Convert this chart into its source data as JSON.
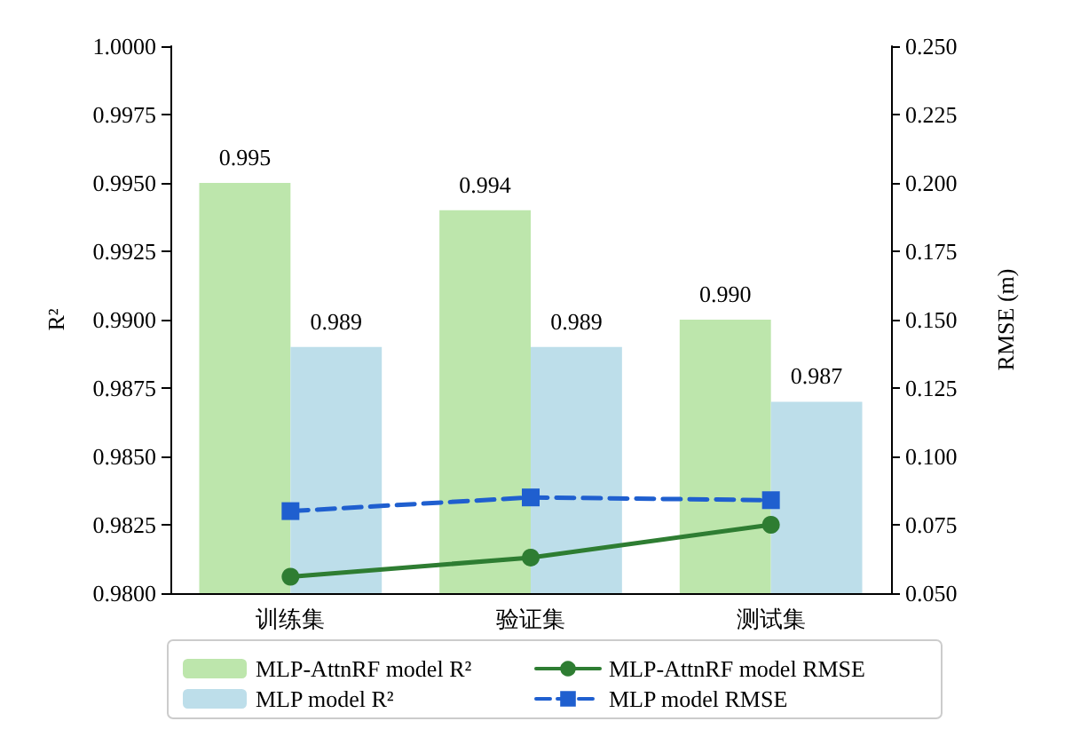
{
  "chart_data": {
    "type": "bar",
    "categories": [
      "训练集",
      "验证集",
      "测试集"
    ],
    "ylabel": "R²",
    "y2label": "RMSE (m)",
    "ylim": [
      0.98,
      1.0
    ],
    "yticks": [
      {
        "value": 0.98,
        "label": "0.9800"
      },
      {
        "value": 0.9825,
        "label": "0.9825"
      },
      {
        "value": 0.985,
        "label": "0.9850"
      },
      {
        "value": 0.9875,
        "label": "0.9875"
      },
      {
        "value": 0.99,
        "label": "0.9900"
      },
      {
        "value": 0.9925,
        "label": "0.9925"
      },
      {
        "value": 0.995,
        "label": "0.9950"
      },
      {
        "value": 0.9975,
        "label": "0.9975"
      },
      {
        "value": 1.0,
        "label": "1.0000"
      }
    ],
    "y2lim": [
      0.05,
      0.25
    ],
    "y2ticks": [
      {
        "value": 0.05,
        "label": "0.050"
      },
      {
        "value": 0.075,
        "label": "0.075"
      },
      {
        "value": 0.1,
        "label": "0.100"
      },
      {
        "value": 0.125,
        "label": "0.125"
      },
      {
        "value": 0.15,
        "label": "0.150"
      },
      {
        "value": 0.175,
        "label": "0.175"
      },
      {
        "value": 0.2,
        "label": "0.200"
      },
      {
        "value": 0.225,
        "label": "0.225"
      },
      {
        "value": 0.25,
        "label": "0.250"
      }
    ],
    "legend": "bottom",
    "grid": false,
    "series": [
      {
        "name": "MLP-AttnRF model R²",
        "color": "#bde6ac",
        "values": [
          0.995,
          0.994,
          0.99
        ],
        "value_labels": [
          "0.995",
          "0.994",
          "0.990"
        ]
      },
      {
        "name": "MLP model R²",
        "color": "#bddeea",
        "values": [
          0.989,
          0.989,
          0.987
        ],
        "value_labels": [
          "0.989",
          "0.989",
          "0.987"
        ]
      },
      {
        "type": "line",
        "axis": "y2",
        "name": "MLP-AttnRF model RMSE",
        "color": "#2e7d32",
        "marker": "circle",
        "line_style": "solid",
        "values": [
          0.056,
          0.063,
          0.075
        ]
      },
      {
        "type": "line",
        "axis": "y2",
        "name": "MLP model RMSE",
        "color": "#1f5fcf",
        "marker": "square",
        "line_style": "dashed",
        "values": [
          0.08,
          0.085,
          0.084
        ]
      }
    ]
  }
}
